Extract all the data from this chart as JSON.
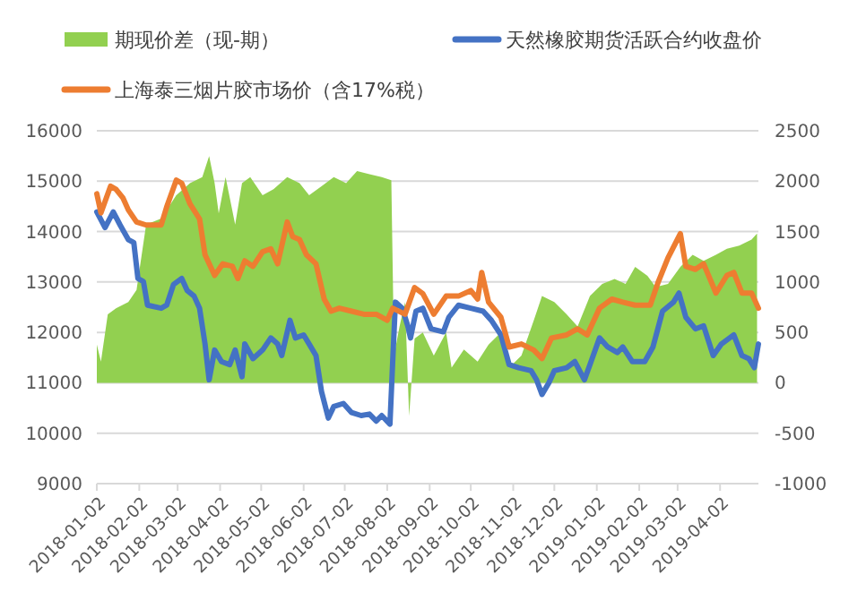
{
  "chart_data": {
    "type": "line",
    "legend": "top",
    "grid": "y",
    "xlim": [
      "2018-01-02",
      "2019-04-30"
    ],
    "xticks": [
      "2018-01-02",
      "2018-02-02",
      "2018-03-02",
      "2018-04-02",
      "2018-05-02",
      "2018-06-02",
      "2018-07-02",
      "2018-08-02",
      "2018-09-02",
      "2018-10-02",
      "2018-11-02",
      "2018-12-02",
      "2019-01-02",
      "2019-02-02",
      "2019-03-02",
      "2019-04-02"
    ],
    "ylim": [
      9000,
      16000
    ],
    "yticks": [
      9000,
      10000,
      11000,
      12000,
      13000,
      14000,
      15000,
      16000
    ],
    "y2lim": [
      -1000,
      2500
    ],
    "y2ticks": [
      -1000,
      -500,
      0,
      500,
      1000,
      1500,
      2000,
      2500
    ],
    "series": [
      {
        "name": "期现价差（现-期）",
        "type": "area",
        "axis": "y2",
        "color": "#92d050",
        "x": [
          "2018-01-02",
          "2018-01-05",
          "2018-01-10",
          "2018-01-16",
          "2018-01-25",
          "2018-01-31",
          "2018-02-07",
          "2018-02-18",
          "2018-03-01",
          "2018-03-11",
          "2018-03-20",
          "2018-03-25",
          "2018-03-29",
          "2018-04-01",
          "2018-04-06",
          "2018-04-13",
          "2018-04-18",
          "2018-04-24",
          "2018-05-03",
          "2018-05-11",
          "2018-05-21",
          "2018-05-30",
          "2018-06-06",
          "2018-06-15",
          "2018-06-24",
          "2018-07-03",
          "2018-07-11",
          "2018-07-20",
          "2018-07-29",
          "2018-08-05",
          "2018-08-07",
          "2018-08-11",
          "2018-08-15",
          "2018-08-18",
          "2018-08-22",
          "2018-08-28",
          "2018-09-05",
          "2018-09-14",
          "2018-09-18",
          "2018-09-27",
          "2018-10-07",
          "2018-10-15",
          "2018-10-24",
          "2018-10-30",
          "2018-11-08",
          "2018-11-17",
          "2018-11-23",
          "2018-12-02",
          "2018-12-11",
          "2018-12-19",
          "2018-12-28",
          "2019-01-06",
          "2019-01-15",
          "2019-01-23",
          "2019-01-30",
          "2019-02-08",
          "2019-02-14",
          "2019-02-23",
          "2019-03-04",
          "2019-03-13",
          "2019-03-21",
          "2019-03-30",
          "2019-04-07",
          "2019-04-16",
          "2019-04-25",
          "2019-04-29"
        ],
        "values": [
          380,
          210,
          680,
          740,
          800,
          920,
          1570,
          1630,
          1860,
          1980,
          2040,
          2250,
          1980,
          1680,
          2040,
          1570,
          1980,
          2040,
          1860,
          1920,
          2040,
          1980,
          1860,
          1950,
          2040,
          1980,
          2100,
          2070,
          2040,
          2010,
          270,
          560,
          800,
          -330,
          440,
          500,
          270,
          500,
          150,
          330,
          210,
          380,
          500,
          150,
          270,
          620,
          860,
          800,
          680,
          560,
          860,
          980,
          1030,
          980,
          1150,
          1060,
          950,
          980,
          1150,
          1270,
          1210,
          1270,
          1330,
          1360,
          1420,
          1480
        ]
      },
      {
        "name": "天然橡胶期货活跃合约收盘价",
        "color": "#4472c4",
        "x": [
          "2018-01-02",
          "2018-01-08",
          "2018-01-14",
          "2018-01-19",
          "2018-01-25",
          "2018-01-29",
          "2018-02-01",
          "2018-02-05",
          "2018-02-08",
          "2018-02-18",
          "2018-02-22",
          "2018-02-27",
          "2018-03-05",
          "2018-03-09",
          "2018-03-14",
          "2018-03-18",
          "2018-03-22",
          "2018-03-25",
          "2018-03-29",
          "2018-04-03",
          "2018-04-09",
          "2018-04-13",
          "2018-04-18",
          "2018-04-20",
          "2018-04-26",
          "2018-05-03",
          "2018-05-09",
          "2018-05-14",
          "2018-05-17",
          "2018-05-23",
          "2018-05-27",
          "2018-06-02",
          "2018-06-06",
          "2018-06-11",
          "2018-06-15",
          "2018-06-20",
          "2018-06-24",
          "2018-07-01",
          "2018-07-07",
          "2018-07-14",
          "2018-07-20",
          "2018-07-25",
          "2018-07-29",
          "2018-08-04",
          "2018-08-06",
          "2018-08-08",
          "2018-08-13",
          "2018-08-17",
          "2018-08-19",
          "2018-08-23",
          "2018-08-28",
          "2018-09-03",
          "2018-09-12",
          "2018-09-16",
          "2018-09-23",
          "2018-10-02",
          "2018-10-11",
          "2018-10-17",
          "2018-10-24",
          "2018-10-30",
          "2018-11-06",
          "2018-11-15",
          "2018-11-19",
          "2018-11-23",
          "2018-11-28",
          "2018-12-02",
          "2018-12-11",
          "2018-12-17",
          "2018-12-24",
          "2018-12-28",
          "2019-01-04",
          "2019-01-10",
          "2019-01-17",
          "2019-01-21",
          "2019-01-28",
          "2019-02-06",
          "2019-02-12",
          "2019-02-19",
          "2019-02-27",
          "2019-03-03",
          "2019-03-08",
          "2019-03-15",
          "2019-03-21",
          "2019-03-28",
          "2019-04-03",
          "2019-04-12",
          "2019-04-18",
          "2019-04-23",
          "2019-04-27",
          "2019-04-30"
        ],
        "values": [
          14390,
          14080,
          14390,
          14130,
          13840,
          13780,
          13070,
          13010,
          12540,
          12480,
          12540,
          12950,
          13070,
          12830,
          12720,
          12480,
          11770,
          11060,
          11650,
          11420,
          11360,
          11650,
          11120,
          11770,
          11480,
          11650,
          11890,
          11770,
          11540,
          12240,
          11890,
          11950,
          11770,
          11540,
          10830,
          10300,
          10530,
          10590,
          10410,
          10350,
          10380,
          10240,
          10350,
          10180,
          11420,
          12600,
          12480,
          12130,
          11890,
          12420,
          12480,
          12070,
          12010,
          12300,
          12540,
          12480,
          12420,
          12240,
          11950,
          11360,
          11300,
          11240,
          11060,
          10770,
          11000,
          11240,
          11300,
          11420,
          11060,
          11360,
          11890,
          11710,
          11600,
          11710,
          11420,
          11420,
          11710,
          12420,
          12600,
          12780,
          12300,
          12070,
          12130,
          11540,
          11770,
          11950,
          11540,
          11480,
          11300,
          11770
        ]
      },
      {
        "name": "上海泰三烟片胶市场价（含17%税）",
        "color": "#ed7d31",
        "x": [
          "2018-01-02",
          "2018-01-05",
          "2018-01-12",
          "2018-01-16",
          "2018-01-21",
          "2018-01-25",
          "2018-01-31",
          "2018-02-07",
          "2018-02-18",
          "2018-02-22",
          "2018-03-01",
          "2018-03-05",
          "2018-03-11",
          "2018-03-18",
          "2018-03-22",
          "2018-03-29",
          "2018-04-04",
          "2018-04-11",
          "2018-04-15",
          "2018-04-20",
          "2018-04-26",
          "2018-05-03",
          "2018-05-09",
          "2018-05-14",
          "2018-05-21",
          "2018-05-25",
          "2018-05-30",
          "2018-06-04",
          "2018-06-11",
          "2018-06-17",
          "2018-06-22",
          "2018-06-28",
          "2018-07-07",
          "2018-07-16",
          "2018-07-25",
          "2018-08-02",
          "2018-08-06",
          "2018-08-15",
          "2018-08-22",
          "2018-08-28",
          "2018-09-05",
          "2018-09-14",
          "2018-09-23",
          "2018-10-02",
          "2018-10-07",
          "2018-10-10",
          "2018-10-15",
          "2018-10-24",
          "2018-10-30",
          "2018-11-08",
          "2018-11-17",
          "2018-11-23",
          "2018-11-30",
          "2018-12-11",
          "2018-12-19",
          "2018-12-26",
          "2019-01-04",
          "2019-01-13",
          "2019-01-21",
          "2019-01-30",
          "2019-02-10",
          "2019-02-16",
          "2019-02-23",
          "2019-03-04",
          "2019-03-08",
          "2019-03-15",
          "2019-03-21",
          "2019-03-30",
          "2019-04-07",
          "2019-04-12",
          "2019-04-18",
          "2019-04-25",
          "2019-04-30"
        ],
        "values": [
          14750,
          14370,
          14900,
          14840,
          14670,
          14430,
          14190,
          14130,
          14130,
          14490,
          15020,
          14960,
          14550,
          14250,
          13540,
          13130,
          13360,
          13310,
          13070,
          13420,
          13310,
          13600,
          13660,
          13360,
          14190,
          13900,
          13840,
          13540,
          13360,
          12660,
          12420,
          12480,
          12420,
          12360,
          12360,
          12240,
          12480,
          12360,
          12890,
          12770,
          12360,
          12720,
          12720,
          12830,
          12660,
          13190,
          12600,
          12300,
          11710,
          11770,
          11650,
          11480,
          11890,
          11950,
          12070,
          11950,
          12480,
          12660,
          12600,
          12540,
          12540,
          13010,
          13480,
          13960,
          13310,
          13250,
          13360,
          12780,
          13130,
          13190,
          12780,
          12780,
          12480
        ]
      }
    ]
  }
}
